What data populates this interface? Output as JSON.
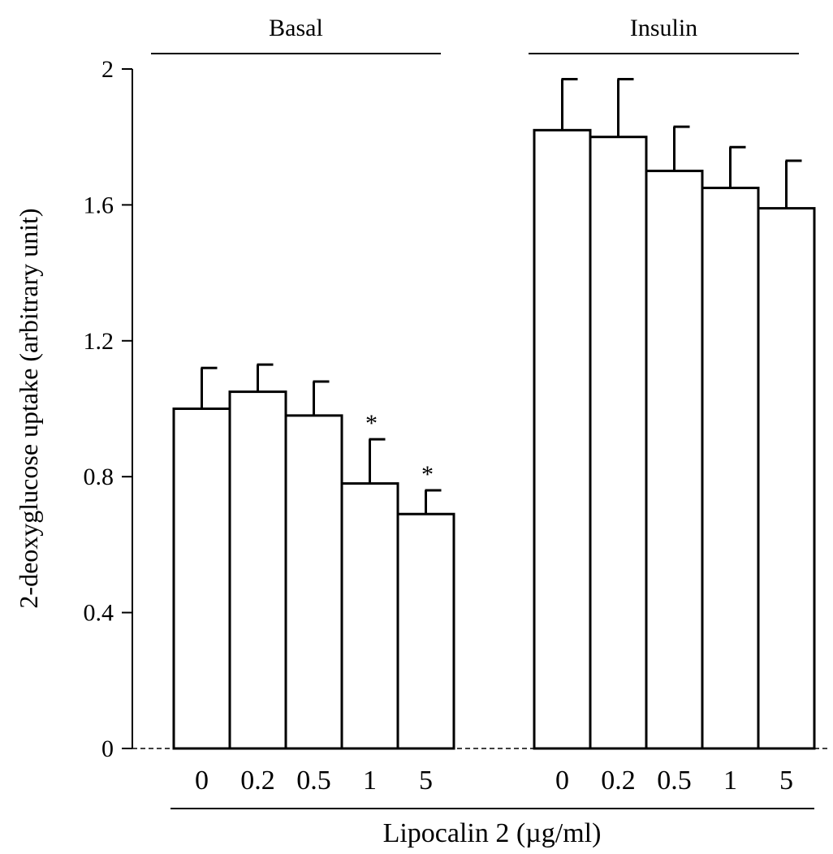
{
  "chart_data": {
    "type": "bar",
    "ylabel": "2-deoxyglucose uptake (arbitrary unit)",
    "xlabel": "Lipocalin 2 (µg/ml)",
    "ylim": [
      0,
      2
    ],
    "yticks": [
      "0",
      "0.4",
      "0.8",
      "1.2",
      "1.6",
      "2"
    ],
    "grid": false,
    "bar_fill": "#ffffff",
    "bar_stroke": "#000000",
    "groups": [
      {
        "name": "Basal",
        "categories": [
          "0",
          "0.2",
          "0.5",
          "1",
          "5"
        ],
        "values": [
          1.0,
          1.05,
          0.98,
          0.78,
          0.69
        ],
        "errors": [
          0.12,
          0.08,
          0.1,
          0.13,
          0.07
        ],
        "annotations": [
          "",
          "",
          "",
          "*",
          "*"
        ]
      },
      {
        "name": "Insulin",
        "categories": [
          "0",
          "0.2",
          "0.5",
          "1",
          "5"
        ],
        "values": [
          1.82,
          1.8,
          1.7,
          1.65,
          1.59
        ],
        "errors": [
          0.15,
          0.17,
          0.13,
          0.12,
          0.14
        ],
        "annotations": [
          "",
          "",
          "",
          "",
          ""
        ]
      }
    ]
  }
}
